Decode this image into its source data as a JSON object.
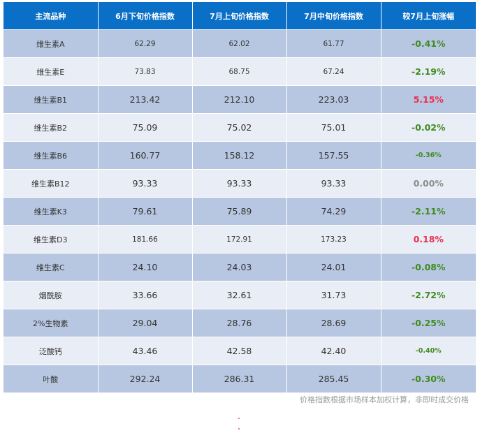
{
  "table": {
    "headers": [
      "主流品种",
      "6月下旬价格指数",
      "7月上旬价格指数",
      "7月中旬价格指数",
      "较7月上旬涨幅"
    ],
    "rows": [
      {
        "name": "维生素A",
        "jun_late": "62.29",
        "jul_early": "62.02",
        "jul_mid": "61.77",
        "change": "-0.41%",
        "trend": "down"
      },
      {
        "name": "维生素E",
        "jun_late": "73.83",
        "jul_early": "68.75",
        "jul_mid": "67.24",
        "change": "-2.19%",
        "trend": "down"
      },
      {
        "name": "维生素B1",
        "jun_late": "213.42",
        "jul_early": "212.10",
        "jul_mid": "223.03",
        "change": "5.15%",
        "trend": "up"
      },
      {
        "name": "维生素B2",
        "jun_late": "75.09",
        "jul_early": "75.02",
        "jul_mid": "75.01",
        "change": "-0.02%",
        "trend": "down"
      },
      {
        "name": "维生素B6",
        "jun_late": "160.77",
        "jul_early": "158.12",
        "jul_mid": "157.55",
        "change": "-0.36%",
        "trend": "down"
      },
      {
        "name": "维生素B12",
        "jun_late": "93.33",
        "jul_early": "93.33",
        "jul_mid": "93.33",
        "change": "0.00%",
        "trend": "flat"
      },
      {
        "name": "维生素K3",
        "jun_late": "79.61",
        "jul_early": "75.89",
        "jul_mid": "74.29",
        "change": "-2.11%",
        "trend": "down"
      },
      {
        "name": "维生素D3",
        "jun_late": "181.66",
        "jul_early": "172.91",
        "jul_mid": "173.23",
        "change": "0.18%",
        "trend": "up"
      },
      {
        "name": "维生素C",
        "jun_late": "24.10",
        "jul_early": "24.03",
        "jul_mid": "24.01",
        "change": "-0.08%",
        "trend": "down"
      },
      {
        "name": "烟酰胺",
        "jun_late": "33.66",
        "jul_early": "32.61",
        "jul_mid": "31.73",
        "change": "-2.72%",
        "trend": "down"
      },
      {
        "name": "2%生物素",
        "jun_late": "29.04",
        "jul_early": "28.76",
        "jul_mid": "28.69",
        "change": "-0.25%",
        "trend": "down"
      },
      {
        "name": "泛酸钙",
        "jun_late": "43.46",
        "jul_early": "42.58",
        "jul_mid": "42.40",
        "change": "-0.40%",
        "trend": "down"
      },
      {
        "name": "叶酸",
        "jun_late": "292.24",
        "jul_early": "286.31",
        "jul_mid": "285.45",
        "change": "-0.30%",
        "trend": "down"
      }
    ]
  },
  "footnote": "价格指数根据市场样本加权计算，非即时成交价格",
  "colors": {
    "header_bg": "#0a6fc7",
    "row_dark": "#b7c7e1",
    "row_light": "#e9edf6",
    "down": "#3f8a1f",
    "up": "#e8304f",
    "flat": "#8c8c8c"
  }
}
